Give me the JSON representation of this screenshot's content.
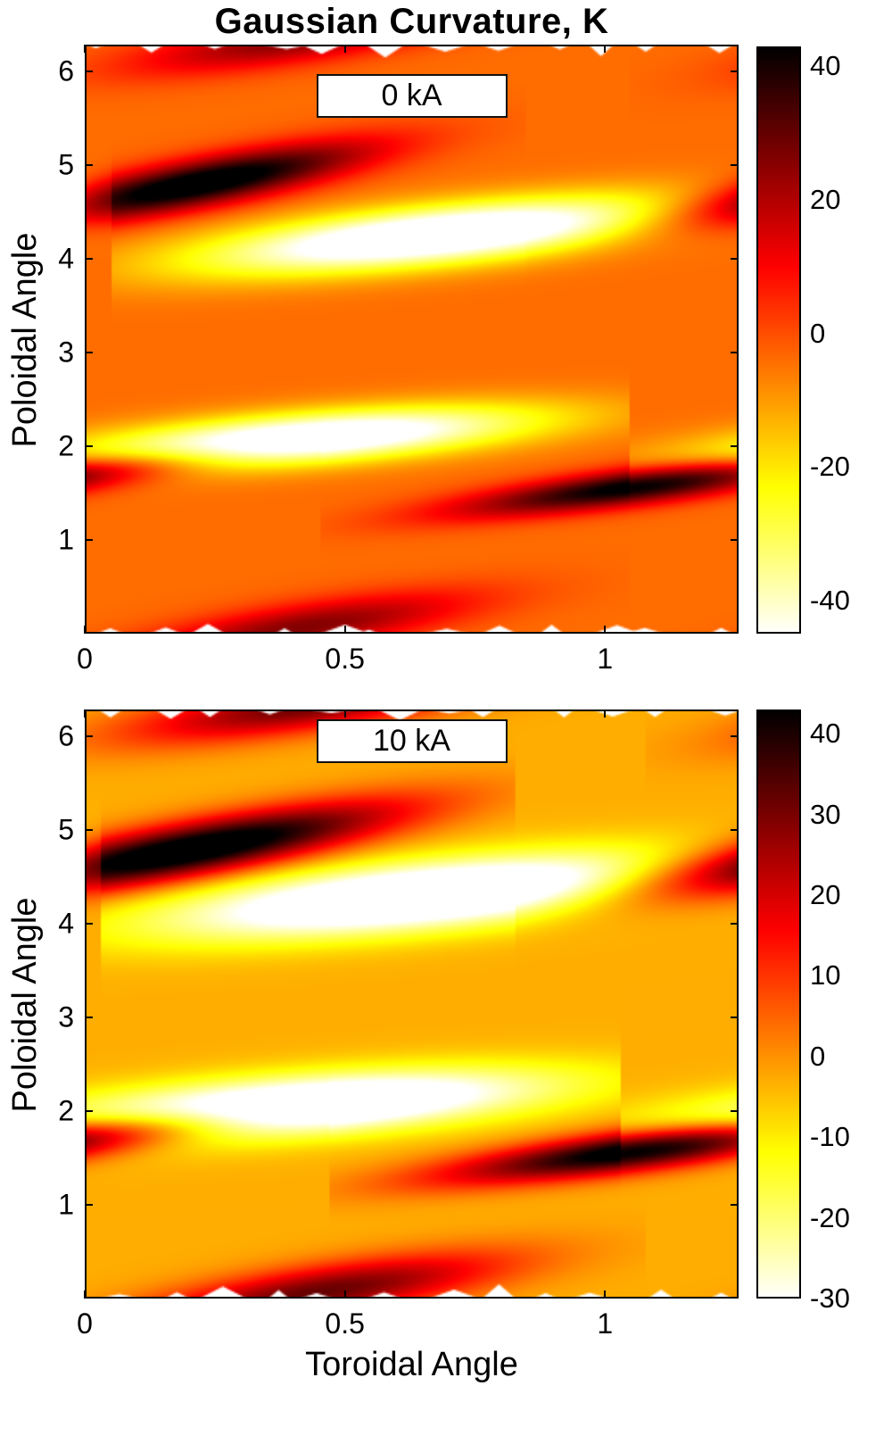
{
  "title": "Gaussian Curvature, K",
  "xlabel": "Toroidal Angle",
  "ylabel": "Poloidal Angle",
  "chart_data": [
    {
      "type": "heatmap",
      "label": "0 kA",
      "xlabel": "Toroidal Angle",
      "ylabel": "Poloidal Angle",
      "colormap": "hot-reversed",
      "x_range": [
        0,
        1.2566
      ],
      "y_range": [
        0,
        6.2832
      ],
      "x_tick_values": [
        0,
        0.5,
        1
      ],
      "x_tick_labels": [
        "0",
        "0.5",
        "1"
      ],
      "y_tick_values": [
        1,
        2,
        3,
        4,
        5,
        6
      ],
      "y_tick_labels": [
        "1",
        "2",
        "3",
        "4",
        "5",
        "6"
      ],
      "colorbar": {
        "vmin": -45,
        "vmax": 43,
        "ticks": [
          40,
          20,
          0,
          -20,
          -40
        ]
      },
      "background_value": -4,
      "ridges": [
        {
          "name": "dark-band-upper-left",
          "cx": 0.22,
          "cy": 4.8,
          "slope": 1.4,
          "len": 0.5,
          "wid": 0.16,
          "amp": 55
        },
        {
          "name": "bright-band-upper",
          "cx": 0.68,
          "cy": 4.25,
          "slope": 0.8,
          "len": 0.55,
          "wid": 0.26,
          "amp": -58
        },
        {
          "name": "bright-band-lower",
          "cx": 0.42,
          "cy": 2.08,
          "slope": 0.6,
          "len": 0.5,
          "wid": 0.24,
          "amp": -55
        },
        {
          "name": "dark-band-lower-right",
          "cx": 1.08,
          "cy": 1.58,
          "slope": 0.85,
          "len": 0.45,
          "wid": 0.15,
          "amp": 50
        },
        {
          "name": "red-band-top-edge",
          "cx": 0.42,
          "cy": 6.35,
          "slope": 1.2,
          "len": 0.45,
          "wid": 0.18,
          "amp": 30
        }
      ]
    },
    {
      "type": "heatmap",
      "label": "10 kA",
      "xlabel": "Toroidal Angle",
      "ylabel": "Poloidal Angle",
      "colormap": "hot-reversed",
      "x_range": [
        0,
        1.2566
      ],
      "y_range": [
        0,
        6.2832
      ],
      "x_tick_values": [
        0,
        0.5,
        1
      ],
      "x_tick_labels": [
        "0",
        "0.5",
        "1"
      ],
      "y_tick_values": [
        1,
        2,
        3,
        4,
        5,
        6
      ],
      "y_tick_labels": [
        "1",
        "2",
        "3",
        "4",
        "5",
        "6"
      ],
      "colorbar": {
        "vmin": -30,
        "vmax": 43,
        "ticks": [
          40,
          30,
          20,
          10,
          0,
          -10,
          -20,
          -30
        ]
      },
      "background_value": -3,
      "ridges": [
        {
          "name": "dark-band-upper-left",
          "cx": 0.2,
          "cy": 4.78,
          "slope": 1.3,
          "len": 0.6,
          "wid": 0.19,
          "amp": 55
        },
        {
          "name": "bright-band-upper",
          "cx": 0.66,
          "cy": 4.3,
          "slope": 0.8,
          "len": 0.6,
          "wid": 0.3,
          "amp": -45
        },
        {
          "name": "bright-band-lower",
          "cx": 0.4,
          "cy": 2.05,
          "slope": 0.62,
          "len": 0.55,
          "wid": 0.28,
          "amp": -45
        },
        {
          "name": "dark-band-lower-right",
          "cx": 1.1,
          "cy": 1.6,
          "slope": 0.85,
          "len": 0.5,
          "wid": 0.17,
          "amp": 52
        },
        {
          "name": "red-band-top-edge",
          "cx": 0.45,
          "cy": 6.35,
          "slope": 1.2,
          "len": 0.5,
          "wid": 0.2,
          "amp": 35
        }
      ]
    }
  ]
}
